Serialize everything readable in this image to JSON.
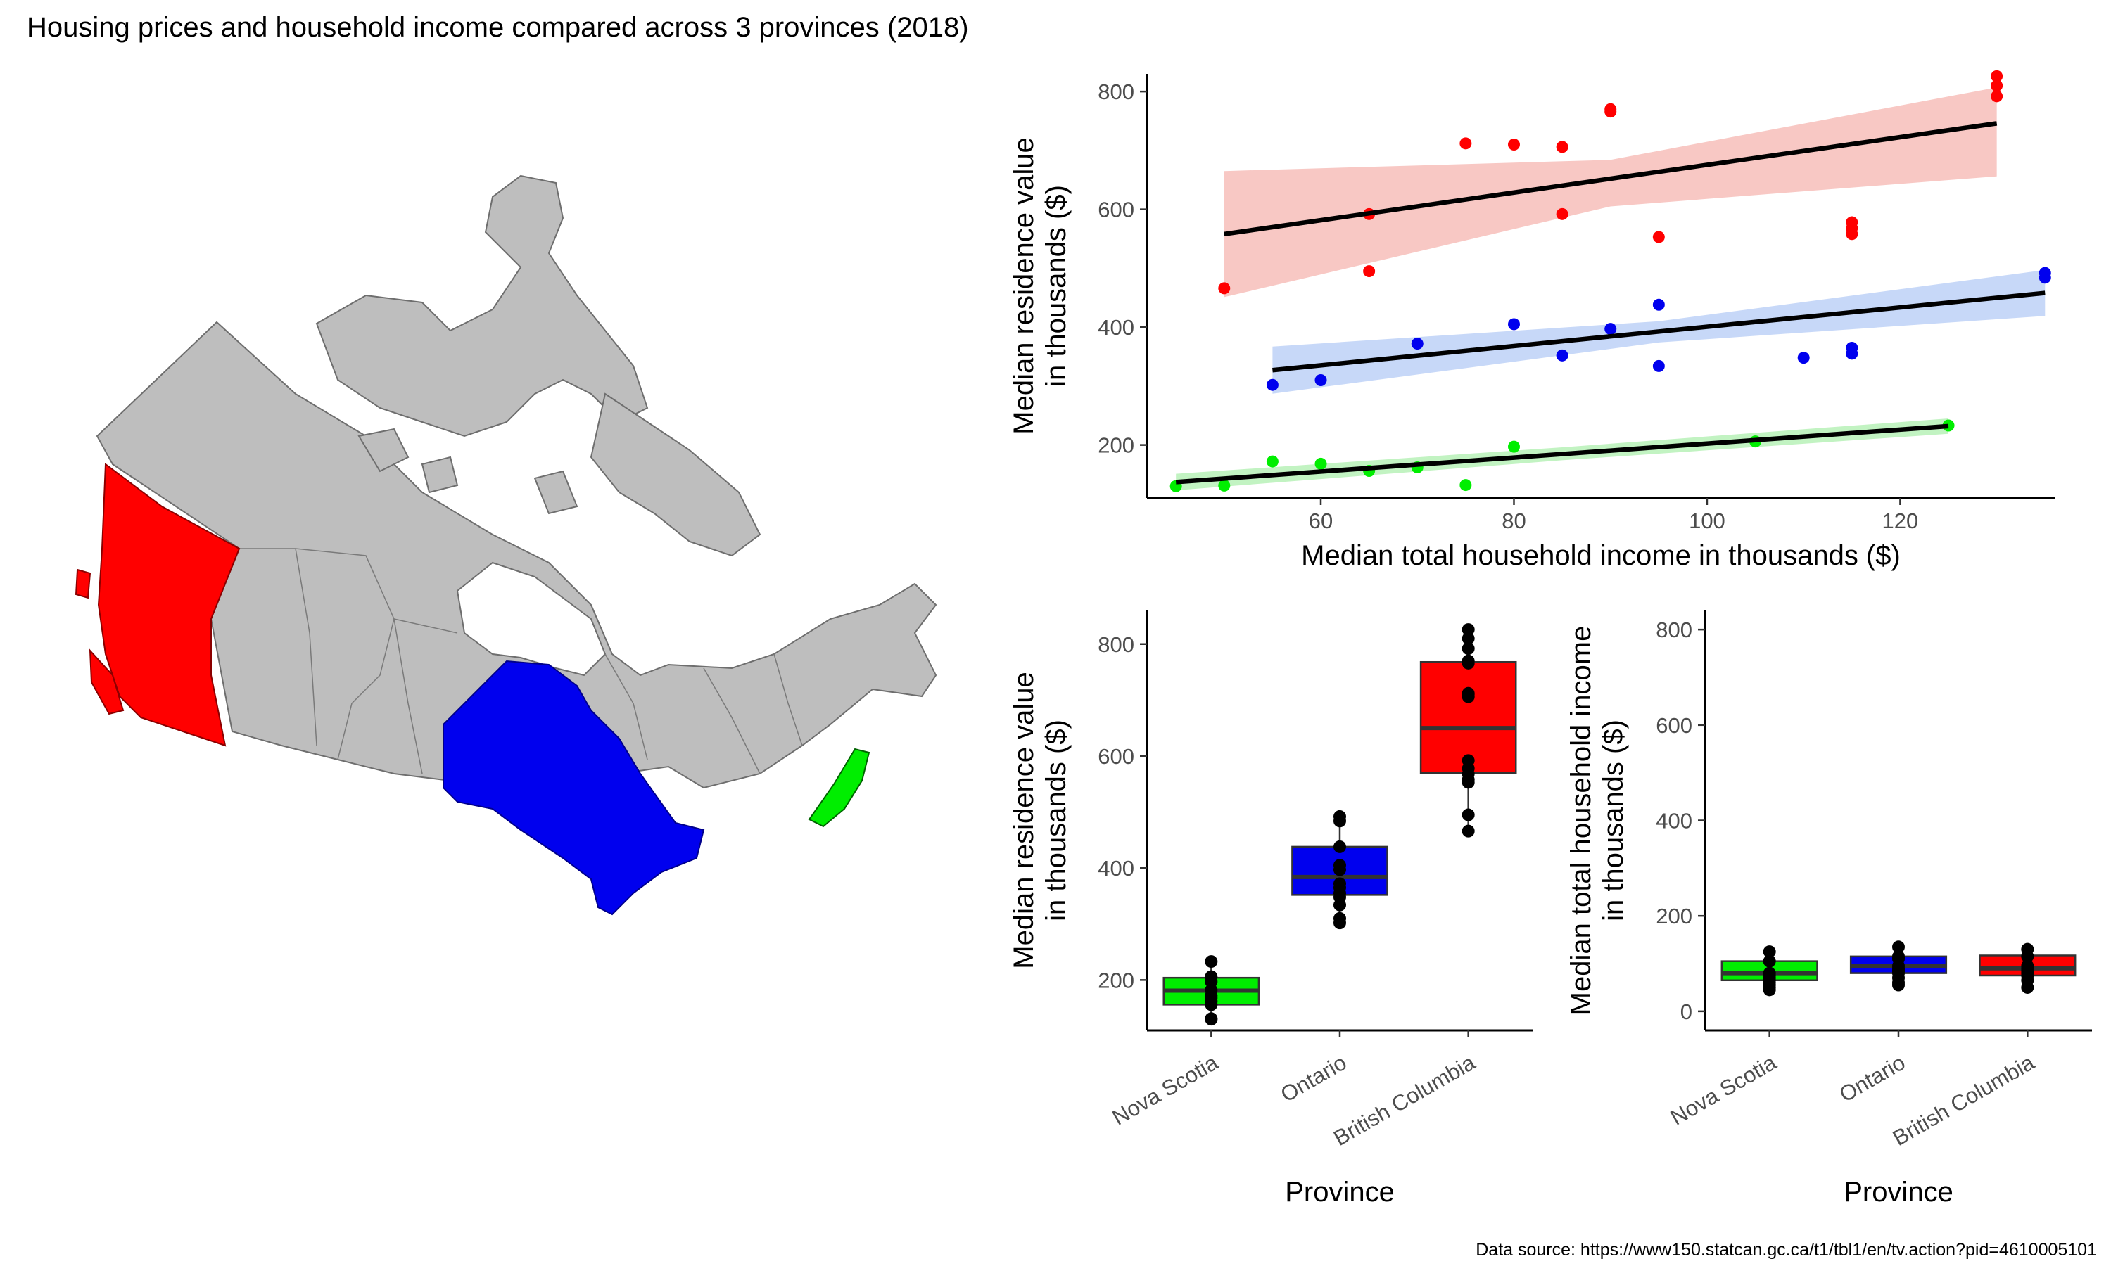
{
  "title": "Housing prices and household income compared across 3 provinces (2018)",
  "source": "Data source: https://www150.statcan.gc.ca/t1/tbl1/en/tv.action?pid=4610005101",
  "colors": {
    "Nova Scotia": "#00ee00",
    "Ontario": "#0000ee",
    "British Columbia": "#ff0000",
    "other_provinces": "#bebebe",
    "bc_ribbon": "#f8c5c1",
    "on_ribbon": "#c4d6f8",
    "ns_ribbon": "#bff2bf"
  },
  "map": {
    "description_label": "Canada census divisions map",
    "highlighted": [
      "British Columbia",
      "Ontario",
      "Nova Scotia"
    ]
  },
  "chart_data": [
    {
      "type": "scatter",
      "xlabel": "Median total household income in thousands ($)",
      "ylabel": [
        "Median residence value",
        "in thousands ($)"
      ],
      "xlim": [
        42,
        136
      ],
      "ylim": [
        110,
        830
      ],
      "xticks": [
        60,
        80,
        100,
        120
      ],
      "yticks": [
        200,
        400,
        600,
        800
      ],
      "series": [
        {
          "name": "British Columbia",
          "points": [
            [
              50,
              466
            ],
            [
              65,
              592
            ],
            [
              65,
              495
            ],
            [
              75,
              712
            ],
            [
              80,
              710
            ],
            [
              85,
              706
            ],
            [
              85,
              592
            ],
            [
              90,
              770
            ],
            [
              90,
              766
            ],
            [
              95,
              553
            ],
            [
              115,
              578
            ],
            [
              115,
              568
            ],
            [
              115,
              558
            ],
            [
              130,
              826
            ],
            [
              130,
              810
            ],
            [
              130,
              792
            ]
          ],
          "fit": [
            [
              50,
              558
            ],
            [
              130,
              746
            ]
          ],
          "band_upper": [
            [
              50,
              665
            ],
            [
              90,
              684
            ],
            [
              130,
              807
            ]
          ],
          "band_lower": [
            [
              50,
              451
            ],
            [
              90,
              605
            ],
            [
              130,
              656
            ]
          ]
        },
        {
          "name": "Ontario",
          "points": [
            [
              55,
              302
            ],
            [
              60,
              310
            ],
            [
              70,
              372
            ],
            [
              80,
              405
            ],
            [
              85,
              352
            ],
            [
              90,
              397
            ],
            [
              95,
              438
            ],
            [
              95,
              334
            ],
            [
              110,
              348
            ],
            [
              115,
              365
            ],
            [
              115,
              355
            ],
            [
              135,
              492
            ],
            [
              135,
              484
            ]
          ],
          "fit": [
            [
              55,
              327
            ],
            [
              135,
              458
            ]
          ],
          "band_upper": [
            [
              55,
              367
            ],
            [
              95,
              410
            ],
            [
              135,
              497
            ]
          ],
          "band_lower": [
            [
              55,
              287
            ],
            [
              95,
              374
            ],
            [
              135,
              419
            ]
          ]
        },
        {
          "name": "Nova Scotia",
          "points": [
            [
              45,
              130
            ],
            [
              50,
              131
            ],
            [
              55,
              172
            ],
            [
              60,
              168
            ],
            [
              65,
              156
            ],
            [
              70,
              162
            ],
            [
              75,
              132
            ],
            [
              80,
              197
            ],
            [
              105,
              206
            ],
            [
              125,
              233
            ]
          ],
          "fit": [
            [
              45,
              137
            ],
            [
              125,
              232
            ]
          ],
          "band_upper": [
            [
              45,
              151
            ],
            [
              85,
              196
            ],
            [
              125,
              245
            ]
          ],
          "band_lower": [
            [
              45,
              123
            ],
            [
              85,
              174
            ],
            [
              125,
              219
            ]
          ]
        }
      ]
    },
    {
      "type": "box",
      "xlabel": "Province",
      "ylabel": [
        "Median residence value",
        "in thousands ($)"
      ],
      "categories": [
        "Nova Scotia",
        "Ontario",
        "British Columbia"
      ],
      "ylim": [
        110,
        860
      ],
      "yticks": [
        200,
        400,
        600,
        800
      ],
      "boxes": [
        {
          "q1": 156,
          "median": 181,
          "q3": 204,
          "whisker_low": 130,
          "whisker_high": 233,
          "points": [
            130,
            131,
            156,
            162,
            168,
            172,
            182,
            197,
            206,
            233
          ]
        },
        {
          "q1": 352,
          "median": 384,
          "q3": 438,
          "whisker_low": 302,
          "whisker_high": 492,
          "points": [
            302,
            310,
            334,
            348,
            355,
            365,
            372,
            397,
            405,
            438,
            484,
            492
          ]
        },
        {
          "q1": 570,
          "median": 650,
          "q3": 768,
          "whisker_low": 466,
          "whisker_high": 826,
          "points": [
            466,
            495,
            553,
            558,
            568,
            578,
            592,
            706,
            710,
            712,
            766,
            770,
            792,
            810,
            826
          ]
        }
      ]
    },
    {
      "type": "box",
      "xlabel": "Province",
      "ylabel": [
        "Median total household income",
        "in thousands ($)"
      ],
      "categories": [
        "Nova Scotia",
        "Ontario",
        "British Columbia"
      ],
      "ylim": [
        -40,
        840
      ],
      "yticks": [
        0,
        200,
        400,
        600,
        800
      ],
      "boxes": [
        {
          "q1": 65,
          "median": 80,
          "q3": 105,
          "whisker_low": 45,
          "whisker_high": 125,
          "points": [
            45,
            50,
            55,
            60,
            65,
            70,
            75,
            80,
            105,
            125
          ]
        },
        {
          "q1": 80,
          "median": 95,
          "q3": 115,
          "whisker_low": 55,
          "whisker_high": 135,
          "points": [
            55,
            60,
            70,
            80,
            85,
            90,
            95,
            110,
            115,
            135
          ]
        },
        {
          "q1": 75,
          "median": 90,
          "q3": 117,
          "whisker_low": 50,
          "whisker_high": 130,
          "points": [
            50,
            65,
            75,
            80,
            85,
            90,
            95,
            115,
            130
          ]
        }
      ]
    }
  ]
}
